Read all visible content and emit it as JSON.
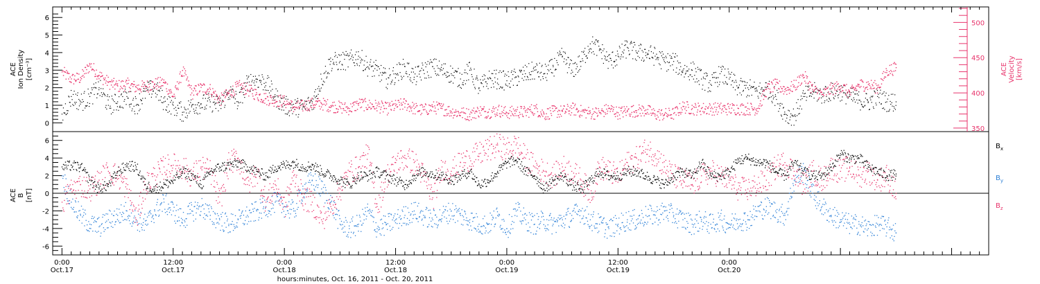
{
  "chart_data": [
    {
      "type": "scatter",
      "panel": "top",
      "ylabel_left": [
        "ACE",
        "Ion Density",
        "[cm⁻³]"
      ],
      "ylabel_right": [
        "ACE",
        "Velocity",
        "[km/s]"
      ],
      "ylim_left": [
        -0.5,
        6.6
      ],
      "yticks_left": [
        "0",
        "1",
        "2",
        "3",
        "4",
        "5",
        "6"
      ],
      "ylim_right": [
        345,
        522
      ],
      "yticks_right": [
        "350",
        "400",
        "450",
        "500"
      ],
      "colors": {
        "density": "#000000",
        "velocity": "#e8336b"
      },
      "series": [
        {
          "name": "",
          "axis": "left",
          "color": "#000000",
          "x_hours": [
            0,
            1,
            2,
            3,
            4,
            5,
            6,
            7,
            8,
            9,
            10,
            11,
            12,
            13,
            14,
            15,
            16,
            17,
            18,
            19,
            20,
            21,
            22,
            23,
            24,
            25,
            26,
            27,
            28,
            29,
            30,
            31,
            32,
            33,
            34,
            35,
            36,
            37,
            38,
            39,
            40,
            41,
            42,
            43,
            44,
            45,
            46,
            47,
            48,
            49,
            50,
            51,
            52,
            53,
            54,
            55,
            56,
            57,
            58,
            59,
            60,
            61,
            62,
            63,
            64,
            65,
            66,
            67,
            68,
            69,
            70,
            71,
            72,
            73,
            74,
            75,
            76,
            77,
            78,
            79,
            80,
            81,
            82,
            83,
            84,
            85,
            86,
            87,
            88,
            89,
            90
          ],
          "values": [
            0.5,
            1.5,
            1.2,
            1.5,
            2.0,
            1.0,
            1.2,
            1.5,
            1.0,
            1.8,
            2.0,
            1.2,
            1.0,
            0.6,
            1.0,
            1.1,
            1.2,
            1.0,
            1.8,
            1.2,
            2.3,
            2.5,
            2.3,
            1.5,
            1.0,
            0.9,
            0.9,
            1.2,
            2.5,
            3.5,
            3.5,
            3.6,
            3.8,
            3.2,
            3.0,
            2.5,
            2.8,
            3.2,
            2.6,
            3.0,
            3.2,
            3.0,
            2.8,
            2.5,
            3.0,
            2.0,
            2.5,
            2.5,
            2.4,
            2.6,
            2.8,
            3.0,
            2.8,
            3.2,
            3.8,
            3.0,
            3.5,
            4.5,
            4.2,
            3.5,
            3.8,
            4.3,
            4.0,
            4.0,
            3.8,
            3.5,
            3.5,
            3.0,
            3.0,
            2.5,
            2.2,
            2.8,
            2.5,
            2.0,
            2.0,
            1.8,
            2.0,
            1.5,
            0.5,
            0.4,
            1.5,
            1.8,
            1.6,
            1.8,
            1.8,
            1.5,
            1.3,
            1.2,
            1.5,
            1.2,
            1.2
          ]
        },
        {
          "name": "",
          "axis": "right",
          "color": "#e8336b",
          "x_hours": [
            0,
            1,
            2,
            3,
            4,
            5,
            6,
            7,
            8,
            9,
            10,
            11,
            12,
            13,
            14,
            15,
            16,
            17,
            18,
            19,
            20,
            21,
            22,
            23,
            24,
            25,
            26,
            27,
            28,
            29,
            30,
            31,
            32,
            33,
            34,
            35,
            36,
            37,
            38,
            39,
            40,
            41,
            42,
            43,
            44,
            45,
            46,
            47,
            48,
            49,
            50,
            51,
            52,
            53,
            54,
            55,
            56,
            57,
            58,
            59,
            60,
            61,
            62,
            63,
            64,
            65,
            66,
            67,
            68,
            69,
            70,
            71,
            72,
            73,
            74,
            75,
            76,
            77,
            78,
            79,
            80,
            81,
            82,
            83,
            84,
            85,
            86,
            87,
            88,
            89,
            90
          ],
          "values": [
            430,
            420,
            422,
            440,
            425,
            415,
            410,
            413,
            408,
            410,
            413,
            415,
            395,
            432,
            400,
            408,
            405,
            390,
            400,
            410,
            405,
            398,
            392,
            390,
            388,
            380,
            382,
            385,
            385,
            382,
            380,
            378,
            385,
            383,
            382,
            378,
            382,
            385,
            378,
            376,
            380,
            378,
            374,
            372,
            370,
            375,
            373,
            376,
            372,
            374,
            373,
            378,
            370,
            374,
            374,
            378,
            374,
            372,
            372,
            378,
            372,
            375,
            375,
            376,
            370,
            370,
            371,
            381,
            378,
            378,
            378,
            378,
            378,
            378,
            378,
            378,
            405,
            412,
            405,
            410,
            425,
            405,
            398,
            406,
            410,
            400,
            412,
            412,
            408,
            432,
            436
          ]
        }
      ]
    },
    {
      "type": "scatter",
      "panel": "bottom",
      "ylabel_left": [
        "ACE",
        "B",
        "[nT]"
      ],
      "ylim": [
        -7.0,
        7.0
      ],
      "yticks": [
        "-6",
        "-4",
        "-2",
        "0",
        "2",
        "4",
        "6"
      ],
      "legend_placement": "right",
      "legend": [
        {
          "letter": "B",
          "sub": "x",
          "color": "#000000"
        },
        {
          "letter": "B",
          "sub": "y",
          "color": "#2b7fd6"
        },
        {
          "letter": "B",
          "sub": "z",
          "color": "#e8336b"
        }
      ],
      "series": [
        {
          "name": "Bx",
          "color": "#000000",
          "x_hours": [
            0,
            1,
            2,
            3,
            4,
            5,
            6,
            7,
            8,
            9,
            10,
            11,
            12,
            13,
            14,
            15,
            16,
            17,
            18,
            19,
            20,
            21,
            22,
            23,
            24,
            25,
            26,
            27,
            28,
            29,
            30,
            31,
            32,
            33,
            34,
            35,
            36,
            37,
            38,
            39,
            40,
            41,
            42,
            43,
            44,
            45,
            46,
            47,
            48,
            49,
            50,
            51,
            52,
            53,
            54,
            55,
            56,
            57,
            58,
            59,
            60,
            61,
            62,
            63,
            64,
            65,
            66,
            67,
            68,
            69,
            70,
            71,
            72,
            73,
            74,
            75,
            76,
            77,
            78,
            79,
            80,
            81,
            82,
            83,
            84,
            85,
            86,
            87,
            88,
            89,
            90
          ],
          "values": [
            3.0,
            3.2,
            3.0,
            1.5,
            0.5,
            1.0,
            2.5,
            3.2,
            3.0,
            1.0,
            0.5,
            1.0,
            1.5,
            2.5,
            2.0,
            1.0,
            2.5,
            3.0,
            3.2,
            3.5,
            3.0,
            2.5,
            2.0,
            3.0,
            3.2,
            3.5,
            3.0,
            3.2,
            2.5,
            2.0,
            1.5,
            1.0,
            2.0,
            2.0,
            2.5,
            2.0,
            1.5,
            1.0,
            2.0,
            2.5,
            2.2,
            2.0,
            1.5,
            2.0,
            2.5,
            1.0,
            1.5,
            2.5,
            3.5,
            3.8,
            2.5,
            2.0,
            0.5,
            1.5,
            2.0,
            1.0,
            0.5,
            1.5,
            2.5,
            2.0,
            2.0,
            2.5,
            2.5,
            2.0,
            1.5,
            1.0,
            2.0,
            2.5,
            2.0,
            3.5,
            2.0,
            2.0,
            2.5,
            3.8,
            4.0,
            3.5,
            3.5,
            2.5,
            2.0,
            3.5,
            2.5,
            2.0,
            2.0,
            3.0,
            4.5,
            4.0,
            4.0,
            3.0,
            2.5,
            2.0,
            2.2
          ]
        },
        {
          "name": "By",
          "color": "#2b7fd6",
          "x_hours": [
            0,
            1,
            2,
            3,
            4,
            5,
            6,
            7,
            8,
            9,
            10,
            11,
            12,
            13,
            14,
            15,
            16,
            17,
            18,
            19,
            20,
            21,
            22,
            23,
            24,
            25,
            26,
            27,
            28,
            29,
            30,
            31,
            32,
            33,
            34,
            35,
            36,
            37,
            38,
            39,
            40,
            41,
            42,
            43,
            44,
            45,
            46,
            47,
            48,
            49,
            50,
            51,
            52,
            53,
            54,
            55,
            56,
            57,
            58,
            59,
            60,
            61,
            62,
            63,
            64,
            65,
            66,
            67,
            68,
            69,
            70,
            71,
            72,
            73,
            74,
            75,
            76,
            77,
            78,
            79,
            80,
            81,
            82,
            83,
            84,
            85,
            86,
            87,
            88,
            89,
            90
          ],
          "values": [
            2.0,
            -1.0,
            -2.5,
            -3.5,
            -3.8,
            -3.0,
            -2.5,
            -2.0,
            -3.0,
            -3.5,
            -2.0,
            -1.0,
            -2.0,
            -3.0,
            -2.0,
            -1.5,
            -2.5,
            -3.0,
            -3.5,
            -3.0,
            -2.5,
            -2.0,
            -1.5,
            -1.0,
            -1.5,
            -2.0,
            0.5,
            1.5,
            0.5,
            -1.0,
            -3.5,
            -4.0,
            -3.5,
            -2.0,
            -4.0,
            -3.5,
            -3.0,
            -2.5,
            -2.0,
            -2.5,
            -3.0,
            -2.5,
            -2.0,
            -2.5,
            -3.0,
            -3.5,
            -3.5,
            -2.5,
            -4.0,
            -2.0,
            -3.0,
            -3.5,
            -3.0,
            -3.5,
            -3.0,
            -2.5,
            -2.0,
            -3.0,
            -3.5,
            -4.0,
            -3.5,
            -3.0,
            -3.0,
            -2.5,
            -2.5,
            -2.0,
            -2.5,
            -3.0,
            -3.5,
            -3.0,
            -3.5,
            -3.0,
            -3.5,
            -3.0,
            -3.0,
            -2.0,
            -1.5,
            -2.0,
            -2.5,
            1.5,
            2.5,
            0.0,
            -1.5,
            -2.5,
            -3.0,
            -3.5,
            -3.5,
            -4.0,
            -3.5,
            -3.8,
            -4.5
          ]
        },
        {
          "name": "Bz",
          "color": "#e8336b",
          "x_hours": [
            0,
            1,
            2,
            3,
            4,
            5,
            6,
            7,
            8,
            9,
            10,
            11,
            12,
            13,
            14,
            15,
            16,
            17,
            18,
            19,
            20,
            21,
            22,
            23,
            24,
            25,
            26,
            27,
            28,
            29,
            30,
            31,
            32,
            33,
            34,
            35,
            36,
            37,
            38,
            39,
            40,
            41,
            42,
            43,
            44,
            45,
            46,
            47,
            48,
            49,
            50,
            51,
            52,
            53,
            54,
            55,
            56,
            57,
            58,
            59,
            60,
            61,
            62,
            63,
            64,
            65,
            66,
            67,
            68,
            69,
            70,
            71,
            72,
            73,
            74,
            75,
            76,
            77,
            78,
            79,
            80,
            81,
            82,
            83,
            84,
            85,
            86,
            87,
            88,
            89,
            90
          ],
          "values": [
            -1.0,
            0.5,
            1.0,
            0.5,
            1.5,
            2.5,
            2.0,
            0.5,
            -3.0,
            1.0,
            2.0,
            3.0,
            3.2,
            3.0,
            2.0,
            3.0,
            2.5,
            -1.0,
            3.5,
            4.0,
            1.0,
            2.5,
            -1.0,
            1.0,
            -1.5,
            2.0,
            -0.5,
            -1.0,
            -3.0,
            -1.5,
            0.5,
            2.5,
            3.0,
            4.5,
            -1.5,
            2.0,
            3.5,
            4.0,
            3.5,
            2.0,
            -0.5,
            3.0,
            2.5,
            3.5,
            4.0,
            4.5,
            5.0,
            5.5,
            5.0,
            5.5,
            4.0,
            3.0,
            2.5,
            2.0,
            3.0,
            2.5,
            1.5,
            0.0,
            3.0,
            2.5,
            2.0,
            3.5,
            4.0,
            5.0,
            4.5,
            3.0,
            2.0,
            1.5,
            1.0,
            2.0,
            2.5,
            2.0,
            1.5,
            0.5,
            0.5,
            1.0,
            1.5,
            3.0,
            3.5,
            2.5,
            1.0,
            2.5,
            1.5,
            3.0,
            2.5,
            3.0,
            2.0,
            2.5,
            1.5,
            2.0,
            0.0
          ]
        }
      ]
    }
  ],
  "x_axis": {
    "range_hours": [
      -1,
      100
    ],
    "major_ticks": [
      {
        "hour": 0,
        "time": "0:00",
        "date": "Oct.17"
      },
      {
        "hour": 12,
        "time": "12:00",
        "date": "Oct.17"
      },
      {
        "hour": 24,
        "time": "0:00",
        "date": "Oct.18"
      },
      {
        "hour": 36,
        "time": "12:00",
        "date": "Oct.18"
      },
      {
        "hour": 48,
        "time": "0:00",
        "date": "Oct.19"
      },
      {
        "hour": 60,
        "time": "12:00",
        "date": "Oct.19"
      },
      {
        "hour": 72,
        "time": "0:00",
        "date": "Oct.20"
      }
    ],
    "label": "hours:minutes, Oct. 16, 2011 - Oct. 20, 2011"
  }
}
